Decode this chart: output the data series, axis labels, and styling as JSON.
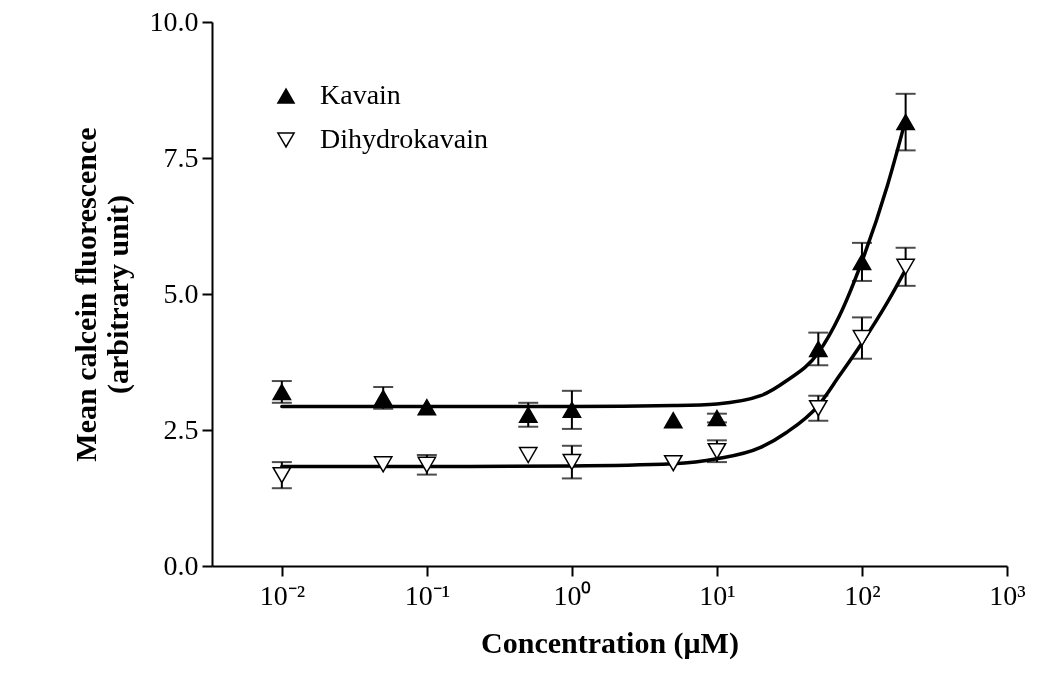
{
  "chart_data": {
    "type": "scatter",
    "xlabel": "Concentration (μM)",
    "ylabel": "Mean calcein fluorescence\n(arbitrary unit)",
    "log": "x",
    "grid": false,
    "legend": "top left",
    "xlim": [
      0.0033,
      1000
    ],
    "ylim": [
      0,
      10
    ],
    "xticks": [
      {
        "value": 0.01,
        "label": "10⁻²"
      },
      {
        "value": 0.1,
        "label": "10⁻¹"
      },
      {
        "value": 1,
        "label": "10⁰"
      },
      {
        "value": 10,
        "label": "10¹"
      },
      {
        "value": 100,
        "label": "10²"
      },
      {
        "value": 1000,
        "label": "10³"
      }
    ],
    "yticks": [
      {
        "value": 0,
        "label": "0.0"
      },
      {
        "value": 2.5,
        "label": "2.5"
      },
      {
        "value": 5,
        "label": "5.0"
      },
      {
        "value": 7.5,
        "label": "7.5"
      },
      {
        "value": 10,
        "label": "10.0"
      }
    ],
    "x": [
      0.01,
      0.05,
      0.1,
      0.5,
      1,
      5,
      10,
      50,
      100,
      200
    ],
    "series": [
      {
        "name": "Kavain",
        "marker": "triangle",
        "color": "#000000",
        "values": [
          3.2,
          3.09,
          2.92,
          2.78,
          2.87,
          2.68,
          2.72,
          3.99,
          5.59,
          8.16
        ],
        "errors": [
          0.2,
          0.2,
          null,
          0.22,
          0.35,
          null,
          0.08,
          0.3,
          0.35,
          0.52
        ]
      },
      {
        "name": "Dihydrokavain",
        "marker": "triangle",
        "color": "#000000",
        "values": [
          1.67,
          1.87,
          1.86,
          2.04,
          1.91,
          1.89,
          2.11,
          2.9,
          4.19,
          5.5
        ],
        "errors": [
          0.24,
          null,
          0.18,
          null,
          0.3,
          null,
          0.2,
          0.23,
          0.38,
          0.35
        ]
      },
      {
        "type": "line",
        "marker": "none",
        "color": "#000000",
        "x": [
          0.01,
          0.1,
          1,
          5,
          10,
          20,
          30,
          50,
          70,
          100,
          150,
          200
        ],
        "values": [
          2.93,
          2.93,
          2.93,
          2.95,
          2.98,
          3.13,
          3.4,
          3.92,
          4.6,
          5.6,
          7.0,
          8.2
        ]
      },
      {
        "type": "line",
        "marker": "none",
        "color": "#000000",
        "x": [
          0.01,
          0.1,
          1,
          5,
          10,
          20,
          30,
          50,
          70,
          100,
          150,
          200
        ],
        "values": [
          1.83,
          1.83,
          1.84,
          1.88,
          1.97,
          2.18,
          2.45,
          2.95,
          3.5,
          4.1,
          4.85,
          5.45
        ]
      }
    ]
  }
}
